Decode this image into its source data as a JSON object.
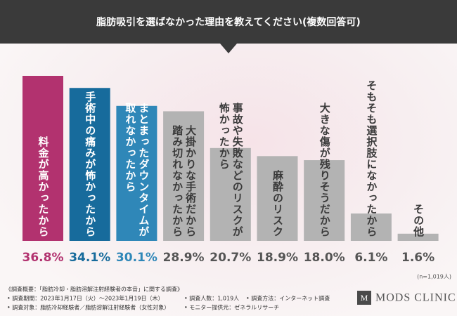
{
  "chart_data": {
    "type": "bar",
    "title": "脂肪吸引を選ばなかった理由を教えてください(複数回答可)",
    "categories": [
      "料金が高かったから",
      "手術中の痛みが怖かったから",
      "まとまったダウンタイムが\n取れなかったから",
      "大掛かりな手術だから\n踏み切れなかったから",
      "事故や失敗などのリスクが\n怖かったから",
      "麻酔のリスク",
      "大きな傷が残りそうだから",
      "そもそも選択肢になかったから",
      "その他"
    ],
    "values": [
      36.8,
      34.1,
      30.1,
      28.9,
      20.7,
      18.9,
      18.0,
      6.1,
      1.6
    ],
    "value_labels": [
      "36.8%",
      "34.1%",
      "30.1%",
      "28.9%",
      "20.7%",
      "18.9%",
      "18.0%",
      "6.1%",
      "1.6%"
    ],
    "colors": [
      "#b2326f",
      "#176b9c",
      "#2f87b8",
      "#b3b3b3",
      "#b3b3b3",
      "#b3b3b3",
      "#b3b3b3",
      "#b3b3b3",
      "#b3b3b3"
    ],
    "note": "(n=1,019人)"
  },
  "footer": {
    "heading": "《調査概要：「脂肪冷却・脂肪溶解注射経験者の本音」に関する調査》",
    "items": [
      "• 調査期間：2023年1月17日（火）〜2023年1月19日（木）",
      "• 調査対象：脂肪冷却経験者／脂肪溶解注射経験者（女性対象）",
      "• 調査人数：1,019人",
      "• モニター提供元：ゼネラルリサーチ",
      "• 調査方法：インターネット調査"
    ],
    "logo_mark": "M",
    "logo": "MODS CLINIC"
  }
}
